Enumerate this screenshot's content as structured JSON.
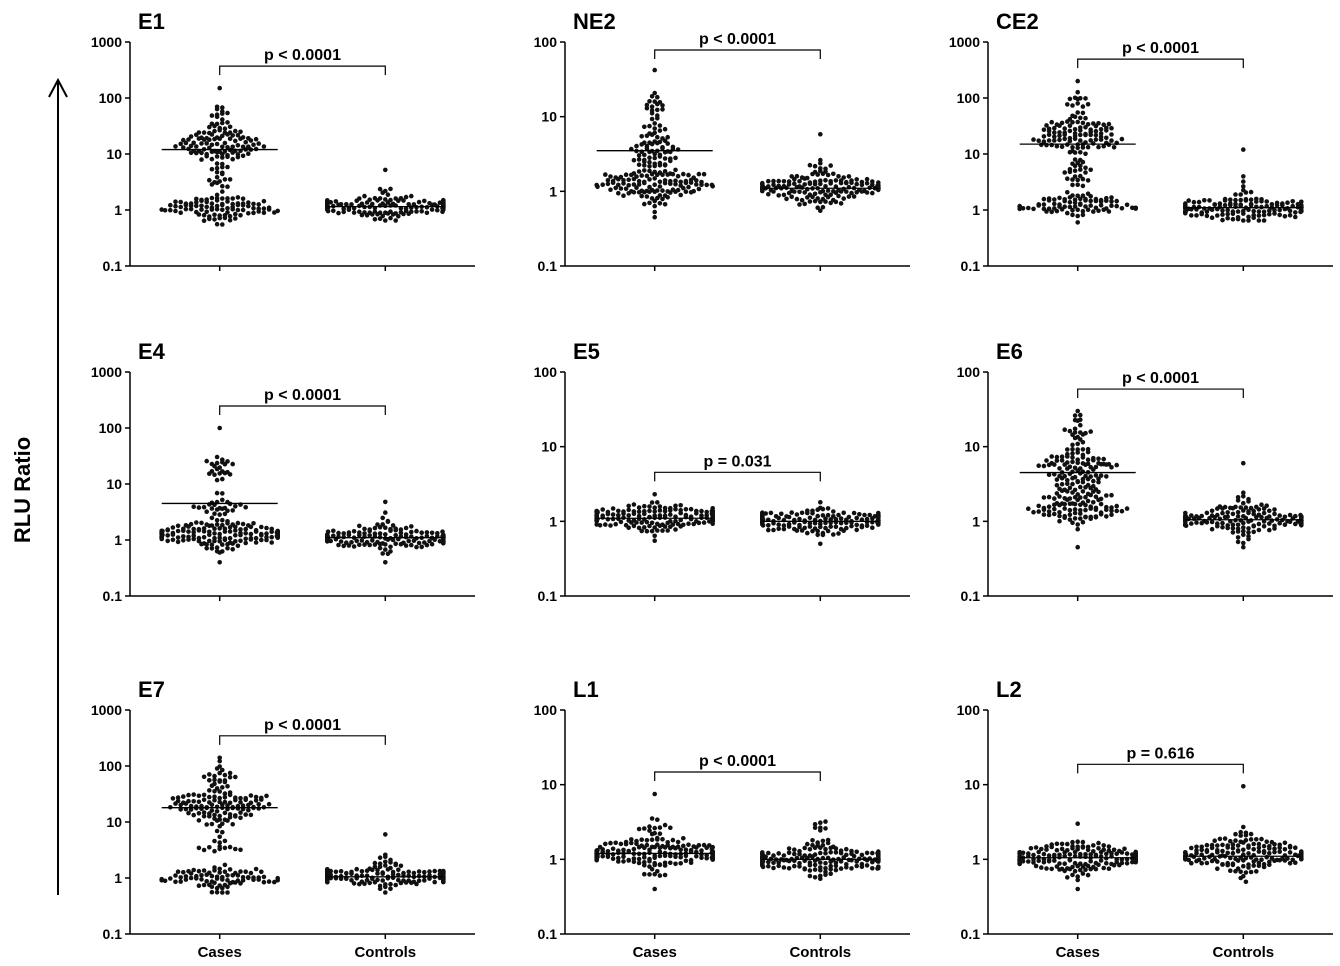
{
  "figure": {
    "ylabel": "RLU Ratio",
    "categories": [
      "Cases",
      "Controls"
    ]
  },
  "chart_data": [
    {
      "type": "scatter",
      "title": "E1",
      "yscale": "log",
      "ylim": [
        0.1,
        1000
      ],
      "yticks": [
        "0.1",
        "1",
        "10",
        "100",
        "1000"
      ],
      "categories": [
        "Cases",
        "Controls"
      ],
      "significance": "p < 0.0001",
      "series": [
        {
          "name": "Cases",
          "median": 12,
          "max": 150,
          "min": 0.55,
          "clusters": [
            {
              "center": 1.1,
              "spread": 0.25,
              "count": 90
            },
            {
              "center": 14,
              "spread": 0.35,
              "count": 90
            },
            {
              "center": 4,
              "spread": 0.35,
              "count": 20
            },
            {
              "center": 45,
              "spread": 0.3,
              "count": 18
            }
          ]
        },
        {
          "name": "Controls",
          "median": 1.15,
          "max": 5.2,
          "min": 0.65,
          "clusters": [
            {
              "center": 1.15,
              "spread": 0.22,
              "count": 140
            },
            {
              "center": 2.2,
              "spread": 0.15,
              "count": 6
            }
          ]
        }
      ]
    },
    {
      "type": "scatter",
      "title": "NE2",
      "yscale": "log",
      "ylim": [
        0.1,
        100
      ],
      "yticks": [
        "0.1",
        "1",
        "10",
        "100"
      ],
      "categories": [
        "Cases",
        "Controls"
      ],
      "significance": "p < 0.0001",
      "series": [
        {
          "name": "Cases",
          "median": 3.5,
          "max": 42,
          "min": 0.45,
          "clusters": [
            {
              "center": 1.3,
              "spread": 0.3,
              "count": 130
            },
            {
              "center": 4,
              "spread": 0.35,
              "count": 55
            },
            {
              "center": 14,
              "spread": 0.3,
              "count": 18
            }
          ]
        },
        {
          "name": "Controls",
          "median": 1.1,
          "max": 5.8,
          "min": 0.55,
          "clusters": [
            {
              "center": 1.1,
              "spread": 0.22,
              "count": 150
            },
            {
              "center": 2.2,
              "spread": 0.15,
              "count": 8
            }
          ]
        }
      ]
    },
    {
      "type": "scatter",
      "title": "CE2",
      "yscale": "log",
      "ylim": [
        0.1,
        1000
      ],
      "yticks": [
        "0.1",
        "1",
        "10",
        "100",
        "1000"
      ],
      "categories": [
        "Cases",
        "Controls"
      ],
      "significance": "p < 0.0001",
      "series": [
        {
          "name": "Cases",
          "median": 15,
          "max": 200,
          "min": 0.6,
          "clusters": [
            {
              "center": 1.2,
              "spread": 0.25,
              "count": 80
            },
            {
              "center": 20,
              "spread": 0.4,
              "count": 100
            },
            {
              "center": 5,
              "spread": 0.35,
              "count": 20
            },
            {
              "center": 70,
              "spread": 0.3,
              "count": 15
            }
          ]
        },
        {
          "name": "Controls",
          "median": 1.1,
          "max": 12,
          "min": 0.65,
          "clusters": [
            {
              "center": 1.1,
              "spread": 0.22,
              "count": 130
            },
            {
              "center": 2.5,
              "spread": 0.2,
              "count": 6
            }
          ]
        }
      ]
    },
    {
      "type": "scatter",
      "title": "E4",
      "yscale": "log",
      "ylim": [
        0.1,
        1000
      ],
      "yticks": [
        "0.1",
        "1",
        "10",
        "100",
        "1000"
      ],
      "categories": [
        "Cases",
        "Controls"
      ],
      "significance": "p < 0.0001",
      "series": [
        {
          "name": "Cases",
          "median": 4.5,
          "max": 100,
          "min": 0.4,
          "clusters": [
            {
              "center": 1.2,
              "spread": 0.3,
              "count": 150
            },
            {
              "center": 4,
              "spread": 0.3,
              "count": 25
            },
            {
              "center": 20,
              "spread": 0.3,
              "count": 22
            }
          ]
        },
        {
          "name": "Controls",
          "median": 1.1,
          "max": 4.8,
          "min": 0.4,
          "clusters": [
            {
              "center": 1.1,
              "spread": 0.22,
              "count": 150
            },
            {
              "center": 2.2,
              "spread": 0.15,
              "count": 8
            }
          ]
        }
      ]
    },
    {
      "type": "scatter",
      "title": "E5",
      "yscale": "log",
      "ylim": [
        0.1,
        100
      ],
      "yticks": [
        "0.1",
        "1",
        "10",
        "100"
      ],
      "categories": [
        "Cases",
        "Controls"
      ],
      "significance": "p = 0.031",
      "series": [
        {
          "name": "Cases",
          "median": 1.1,
          "max": 2.3,
          "min": 0.55,
          "clusters": [
            {
              "center": 1.1,
              "spread": 0.2,
              "count": 160
            }
          ]
        },
        {
          "name": "Controls",
          "median": 1.0,
          "max": 1.8,
          "min": 0.5,
          "clusters": [
            {
              "center": 1.0,
              "spread": 0.18,
              "count": 150
            }
          ]
        }
      ]
    },
    {
      "type": "scatter",
      "title": "E6",
      "yscale": "log",
      "ylim": [
        0.1,
        100
      ],
      "yticks": [
        "0.1",
        "1",
        "10",
        "100"
      ],
      "categories": [
        "Cases",
        "Controls"
      ],
      "significance": "p < 0.0001",
      "series": [
        {
          "name": "Cases",
          "median": 4.5,
          "max": 30,
          "min": 0.45,
          "clusters": [
            {
              "center": 1.5,
              "spread": 0.3,
              "count": 90
            },
            {
              "center": 5,
              "spread": 0.35,
              "count": 100
            },
            {
              "center": 15,
              "spread": 0.25,
              "count": 20
            }
          ]
        },
        {
          "name": "Controls",
          "median": 1.05,
          "max": 6,
          "min": 0.45,
          "clusters": [
            {
              "center": 1.05,
              "spread": 0.22,
              "count": 150
            },
            {
              "center": 2,
              "spread": 0.15,
              "count": 8
            }
          ]
        }
      ]
    },
    {
      "type": "scatter",
      "title": "E7",
      "yscale": "log",
      "ylim": [
        0.1,
        1000
      ],
      "yticks": [
        "0.1",
        "1",
        "10",
        "100",
        "1000"
      ],
      "categories": [
        "Cases",
        "Controls"
      ],
      "significance": "p < 0.0001",
      "series": [
        {
          "name": "Cases",
          "median": 18,
          "max": 140,
          "min": 0.55,
          "clusters": [
            {
              "center": 1,
              "spread": 0.2,
              "count": 80
            },
            {
              "center": 20,
              "spread": 0.35,
              "count": 110
            },
            {
              "center": 4,
              "spread": 0.35,
              "count": 15
            },
            {
              "center": 60,
              "spread": 0.25,
              "count": 20
            }
          ]
        },
        {
          "name": "Controls",
          "median": 1.05,
          "max": 6,
          "min": 0.55,
          "clusters": [
            {
              "center": 1.05,
              "spread": 0.2,
              "count": 140
            },
            {
              "center": 2,
              "spread": 0.15,
              "count": 8
            }
          ]
        }
      ]
    },
    {
      "type": "scatter",
      "title": "L1",
      "yscale": "log",
      "ylim": [
        0.1,
        100
      ],
      "yticks": [
        "0.1",
        "1",
        "10",
        "100"
      ],
      "categories": [
        "Cases",
        "Controls"
      ],
      "significance": "p < 0.0001",
      "series": [
        {
          "name": "Cases",
          "median": 1.2,
          "max": 7.5,
          "min": 0.4,
          "clusters": [
            {
              "center": 1.2,
              "spread": 0.25,
              "count": 170
            },
            {
              "center": 2.8,
              "spread": 0.2,
              "count": 8
            }
          ]
        },
        {
          "name": "Controls",
          "median": 1.0,
          "max": 3.2,
          "min": 0.55,
          "clusters": [
            {
              "center": 1.0,
              "spread": 0.22,
              "count": 160
            },
            {
              "center": 2.5,
              "spread": 0.15,
              "count": 6
            }
          ]
        }
      ]
    },
    {
      "type": "scatter",
      "title": "L2",
      "yscale": "log",
      "ylim": [
        0.1,
        100
      ],
      "yticks": [
        "0.1",
        "1",
        "10",
        "100"
      ],
      "categories": [
        "Cases",
        "Controls"
      ],
      "significance": "p = 0.616",
      "series": [
        {
          "name": "Cases",
          "median": 1.05,
          "max": 3,
          "min": 0.4,
          "clusters": [
            {
              "center": 1.05,
              "spread": 0.22,
              "count": 170
            }
          ]
        },
        {
          "name": "Controls",
          "median": 1.1,
          "max": 9.5,
          "min": 0.5,
          "clusters": [
            {
              "center": 1.1,
              "spread": 0.25,
              "count": 160
            },
            {
              "center": 2.5,
              "spread": 0.15,
              "count": 4
            }
          ]
        }
      ]
    }
  ]
}
